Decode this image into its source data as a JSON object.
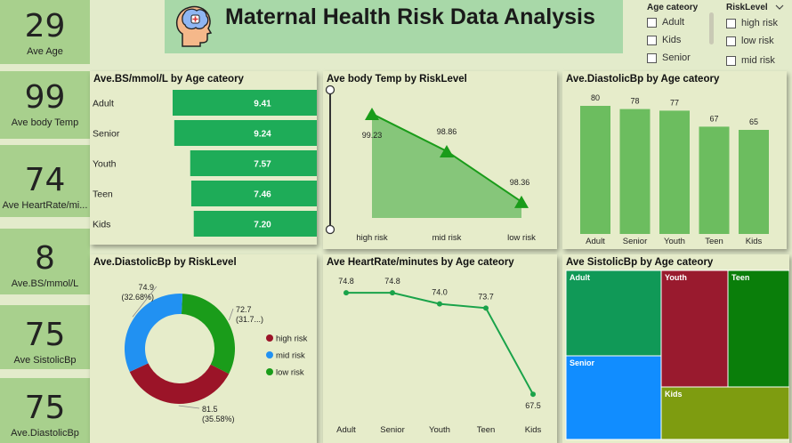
{
  "title": "Maternal Health Risk Data Analysis",
  "colors": {
    "accent_green": "#1eac58",
    "title_bg": "#a8d8a8",
    "kpi_bg": "#a8d08d",
    "high": "#9b1428",
    "mid": "#2191f2",
    "low": "#1a9c1a"
  },
  "kpis": [
    {
      "value": "29",
      "label": "Ave Age"
    },
    {
      "value": "99",
      "label": "Ave body Temp"
    },
    {
      "value": "74",
      "label": "Ave HeartRate/mi..."
    },
    {
      "value": "8",
      "label": "Ave.BS/mmol/L"
    },
    {
      "value": "75",
      "label": "Ave SistolicBp"
    },
    {
      "value": "75",
      "label": "Ave.DiastolicBp"
    }
  ],
  "slicers": {
    "age": {
      "title": "Age cateory",
      "options": [
        "Adult",
        "Kids",
        "Senior"
      ]
    },
    "risk": {
      "title": "RiskLevel",
      "options": [
        "high risk",
        "low risk",
        "mid risk"
      ]
    }
  },
  "chart_data": [
    {
      "type": "bar",
      "orientation": "horizontal",
      "title": "Ave.BS/mmol/L by Age cateory",
      "categories": [
        "Adult",
        "Senior",
        "Youth",
        "Teen",
        "Kids"
      ],
      "values": [
        9.41,
        9.24,
        7.57,
        7.46,
        7.2
      ],
      "labels": [
        "9.41",
        "9.24",
        "7.57",
        "7.46",
        "7.20"
      ]
    },
    {
      "type": "area",
      "title": "Ave body Temp by RiskLevel",
      "categories": [
        "high risk",
        "mid risk",
        "low risk"
      ],
      "values": [
        99.23,
        98.86,
        98.36
      ],
      "labels": [
        "99.23",
        "98.86",
        "98.36"
      ]
    },
    {
      "type": "bar",
      "title": "Ave.DiastolicBp by Age cateory",
      "categories": [
        "Adult",
        "Senior",
        "Youth",
        "Teen",
        "Kids"
      ],
      "values": [
        80,
        78,
        77,
        67,
        65
      ],
      "labels": [
        "80",
        "78",
        "77",
        "67",
        "65"
      ]
    },
    {
      "type": "pie",
      "donut": true,
      "title": "Ave.DiastolicBp by RiskLevel",
      "slices": [
        {
          "name": "high risk",
          "value": 81.5,
          "label": "81.5",
          "pct": "(35.58%)"
        },
        {
          "name": "mid risk",
          "value": 74.9,
          "label": "74.9",
          "pct": "(32.68%)"
        },
        {
          "name": "low risk",
          "value": 72.7,
          "label": "72.7",
          "pct": "(31.7...)"
        }
      ],
      "legend": [
        "high risk",
        "mid risk",
        "low risk"
      ]
    },
    {
      "type": "line",
      "title": "Ave HeartRate/minutes by Age cateory",
      "categories": [
        "Adult",
        "Senior",
        "Youth",
        "Teen",
        "Kids"
      ],
      "values": [
        74.8,
        74.8,
        74.0,
        73.7,
        67.5
      ],
      "labels": [
        "74.8",
        "74.8",
        "74.0",
        "73.7",
        "67.5"
      ]
    },
    {
      "type": "treemap",
      "title": "Ave SistolicBp by Age cateory",
      "items": [
        {
          "name": "Adult",
          "color": "#109957"
        },
        {
          "name": "Senior",
          "color": "#118dff"
        },
        {
          "name": "Youth",
          "color": "#991a2e"
        },
        {
          "name": "Teen",
          "color": "#0a7e0a"
        },
        {
          "name": "Kids",
          "color": "#7e9c10"
        }
      ]
    }
  ]
}
